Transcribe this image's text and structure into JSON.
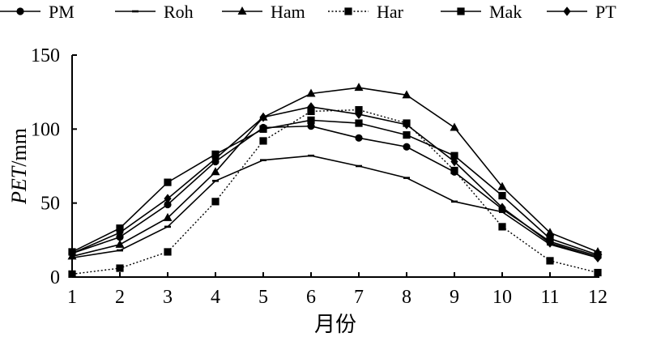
{
  "chart_data": {
    "type": "line",
    "title": "",
    "xlabel": "月份",
    "ylabel_italic": "PET",
    "ylabel_unit": "/mm",
    "categories": [
      1,
      2,
      3,
      4,
      5,
      6,
      7,
      8,
      9,
      10,
      11,
      12
    ],
    "xlim": [
      1,
      12
    ],
    "ylim": [
      0,
      150
    ],
    "yticks": [
      0,
      50,
      100,
      150
    ],
    "grid": false,
    "legend_position": "top",
    "series": [
      {
        "name": "PM",
        "marker": "circle",
        "line": "solid",
        "values": [
          16,
          27,
          49,
          78,
          101,
          102,
          94,
          88,
          71,
          46,
          24,
          14
        ]
      },
      {
        "name": "Roh",
        "marker": "dash",
        "line": "solid",
        "values": [
          13,
          18,
          34,
          65,
          79,
          82,
          75,
          67,
          51,
          44,
          22,
          13
        ]
      },
      {
        "name": "Ham",
        "marker": "triangle",
        "line": "solid",
        "values": [
          14,
          22,
          40,
          71,
          108,
          124,
          128,
          123,
          101,
          61,
          30,
          17
        ]
      },
      {
        "name": "Har",
        "marker": "square",
        "line": "dotted",
        "values": [
          2,
          6,
          17,
          51,
          92,
          112,
          113,
          104,
          72,
          34,
          11,
          3
        ]
      },
      {
        "name": "Mak",
        "marker": "square",
        "line": "solid",
        "values": [
          17,
          33,
          64,
          83,
          100,
          106,
          104,
          96,
          82,
          55,
          26,
          15
        ]
      },
      {
        "name": "PT",
        "marker": "diamond",
        "line": "solid",
        "values": [
          16,
          30,
          53,
          80,
          108,
          115,
          110,
          103,
          78,
          47,
          23,
          13
        ]
      }
    ]
  }
}
